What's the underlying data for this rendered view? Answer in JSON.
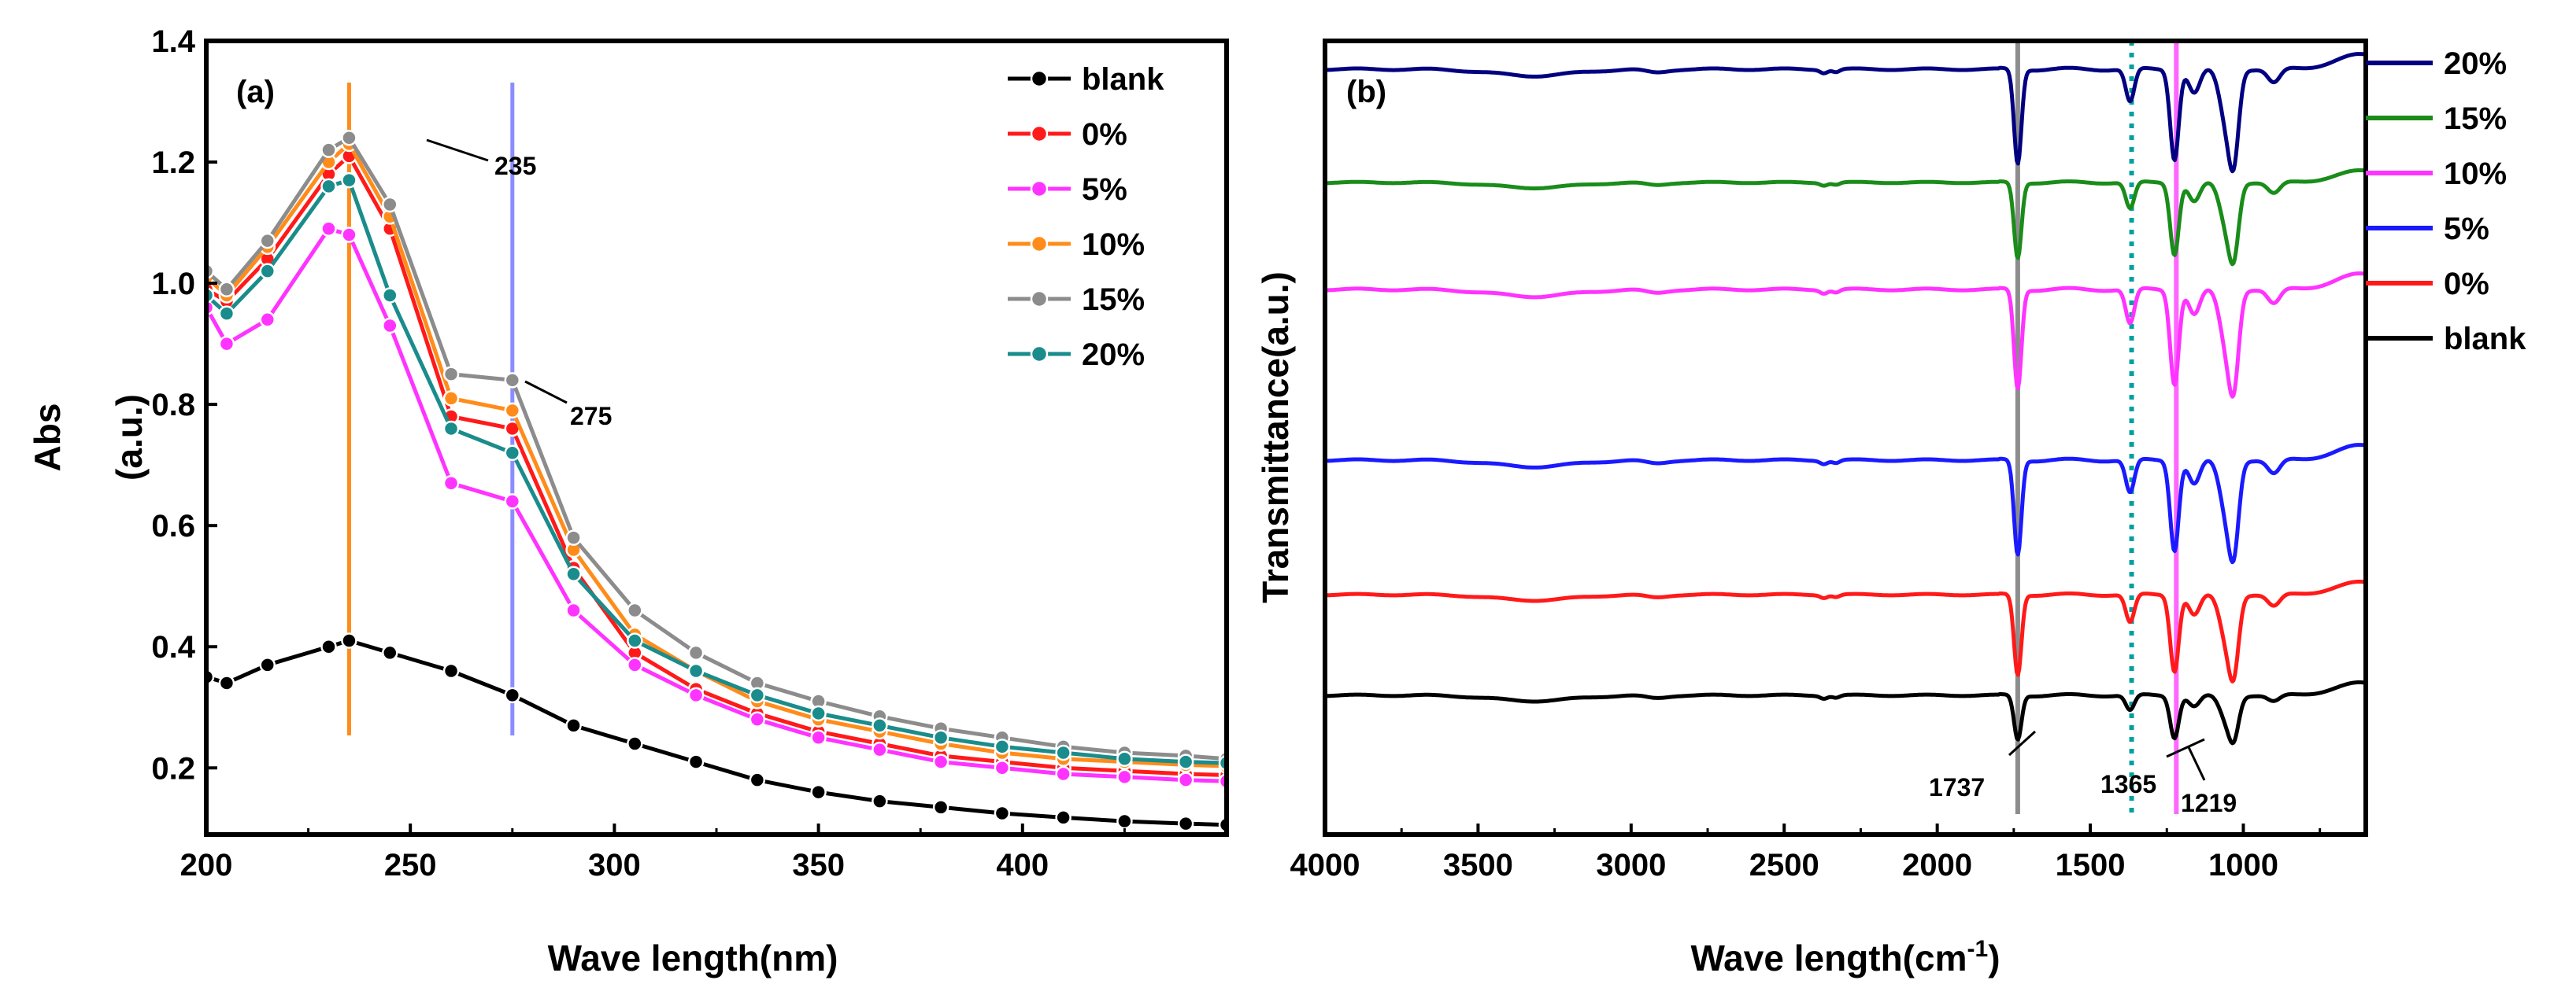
{
  "chart_data": [
    {
      "type": "line",
      "panel_label": "(a)",
      "xlabel": "Wave length(nm)",
      "ylabel": "Abs",
      "ylabel_unit": "(a.u.)",
      "xlim": [
        200,
        450
      ],
      "ylim": [
        0.09,
        1.4
      ],
      "xticks": [
        200,
        250,
        300,
        350,
        400
      ],
      "yticks": [
        0.2,
        0.4,
        0.6,
        0.8,
        1.0,
        1.2,
        1.4
      ],
      "ytick_labels": [
        "0.2",
        "0.4",
        "0.6",
        "0.8",
        "1.0",
        "1.2",
        "1.4"
      ],
      "legend_position": "top-right",
      "x": [
        200,
        205,
        215,
        230,
        235,
        245,
        260,
        275,
        290,
        305,
        320,
        335,
        350,
        365,
        380,
        395,
        410,
        425,
        440,
        450
      ],
      "series": [
        {
          "name": "blank",
          "color": "#000000",
          "values": [
            0.35,
            0.34,
            0.37,
            0.4,
            0.41,
            0.39,
            0.36,
            0.32,
            0.27,
            0.24,
            0.21,
            0.18,
            0.16,
            0.145,
            0.135,
            0.125,
            0.118,
            0.112,
            0.108,
            0.106
          ]
        },
        {
          "name": "0%",
          "color": "#ff1a1a",
          "values": [
            0.99,
            0.97,
            1.04,
            1.18,
            1.21,
            1.09,
            0.78,
            0.76,
            0.53,
            0.39,
            0.33,
            0.29,
            0.26,
            0.24,
            0.22,
            0.21,
            0.2,
            0.195,
            0.19,
            0.188
          ]
        },
        {
          "name": "5%",
          "color": "#ff33ff",
          "values": [
            0.96,
            0.9,
            0.94,
            1.09,
            1.08,
            0.93,
            0.67,
            0.64,
            0.46,
            0.37,
            0.32,
            0.28,
            0.25,
            0.23,
            0.21,
            0.2,
            0.19,
            0.185,
            0.18,
            0.178
          ]
        },
        {
          "name": "10%",
          "color": "#ff8c1a",
          "values": [
            1.01,
            0.98,
            1.06,
            1.2,
            1.23,
            1.11,
            0.81,
            0.79,
            0.56,
            0.42,
            0.36,
            0.31,
            0.28,
            0.26,
            0.24,
            0.225,
            0.215,
            0.21,
            0.205,
            0.203
          ]
        },
        {
          "name": "15%",
          "color": "#8c8c8c",
          "values": [
            1.02,
            0.99,
            1.07,
            1.22,
            1.24,
            1.13,
            0.85,
            0.84,
            0.58,
            0.46,
            0.39,
            0.34,
            0.31,
            0.285,
            0.265,
            0.25,
            0.235,
            0.225,
            0.22,
            0.215
          ]
        },
        {
          "name": "20%",
          "color": "#1a8c8c",
          "values": [
            0.98,
            0.95,
            1.02,
            1.16,
            1.17,
            0.98,
            0.76,
            0.72,
            0.52,
            0.41,
            0.36,
            0.32,
            0.29,
            0.27,
            0.25,
            0.235,
            0.225,
            0.215,
            0.21,
            0.208
          ]
        }
      ],
      "vertical_markers": [
        {
          "x": 235,
          "color": "#ff8c1a"
        },
        {
          "x": 275,
          "color": "#8c8cff"
        }
      ],
      "annotations": [
        {
          "text": "235",
          "x": 235,
          "y": 1.24
        },
        {
          "text": "275",
          "x": 275,
          "y": 0.84
        }
      ]
    },
    {
      "type": "line",
      "panel_label": "(b)",
      "xlabel": "Wave length(cm",
      "xlabel_superscript": "-1",
      "xlabel_suffix": ")",
      "ylabel": "Transmittance(a.u.)",
      "xlim": [
        4000,
        600
      ],
      "xticks": [
        4000,
        3500,
        3000,
        2500,
        2000,
        1500,
        1000
      ],
      "legend_position": "right",
      "series": [
        {
          "name": "20%",
          "color": "#000080"
        },
        {
          "name": "15%",
          "color": "#1a8c1a"
        },
        {
          "name": "10%",
          "color": "#ff33ff"
        },
        {
          "name": "5%",
          "color": "#1a1aff"
        },
        {
          "name": "0%",
          "color": "#ff1a1a"
        },
        {
          "name": "blank",
          "color": "#000000"
        }
      ],
      "vertical_markers": [
        {
          "x": 1737,
          "color": "#8c8c8c"
        },
        {
          "x": 1365,
          "color": "#00a0a0"
        },
        {
          "x": 1219,
          "color": "#ff66ff"
        }
      ],
      "annotations": [
        {
          "text": "1737",
          "x": 1737
        },
        {
          "text": "1365",
          "x": 1365
        },
        {
          "text": "1219",
          "x": 1219
        }
      ]
    }
  ]
}
